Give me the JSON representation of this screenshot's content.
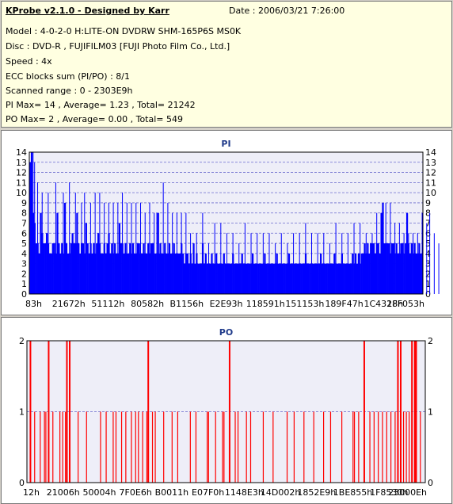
{
  "header": {
    "title": "KProbe v2.1.0 - Designed by Karr",
    "date": "Date : 2006/03/21 7:26:00",
    "lines": [
      "Model : 4-0-2-0 H:LITE-ON DVDRW SHM-165P6S MS0K",
      "Disc : DVD-R , FUJIFILM03 [FUJI Photo Film Co., Ltd.]",
      "Speed : 4x",
      "ECC blocks sum (PI/PO) : 8/1",
      "Scanned range : 0 - 2303E9h",
      "PI Max= 14 , Average= 1.23 , Total= 21242",
      "PO Max= 2 , Average= 0.00 , Total= 549"
    ]
  },
  "colors": {
    "pi_fill": "#0000ff",
    "po_bar": "#ff0000",
    "grid": "#6a6acd",
    "plot_bg": "#eeeef8"
  },
  "chart_data": [
    {
      "type": "bar",
      "title": "PI",
      "ylim": [
        0,
        14
      ],
      "yticks": [
        "0",
        "1",
        "2",
        "3",
        "4",
        "5",
        "6",
        "7",
        "8",
        "9",
        "10",
        "11",
        "12",
        "13",
        "14"
      ],
      "xticks": [
        "83h",
        "21672h",
        "51112h",
        "80582h",
        "B1156h",
        "E2E93h",
        "118591h",
        "151153h",
        "189F47h",
        "1C4328h",
        "1FF053h"
      ],
      "series": [
        {
          "values": [
            13,
            14,
            8,
            7,
            5,
            5,
            4,
            8,
            6,
            5,
            5,
            6,
            5,
            4,
            4,
            5,
            5,
            4,
            8,
            5,
            4,
            5,
            4,
            9,
            5,
            4,
            4,
            5,
            6,
            5,
            5,
            8,
            5,
            4,
            5,
            5,
            4,
            7,
            5,
            4,
            5,
            4,
            5,
            4,
            5,
            6,
            5,
            4,
            4,
            5,
            4,
            5,
            6,
            4,
            5,
            4,
            5,
            4,
            4,
            7,
            5,
            5,
            4,
            5,
            4,
            4,
            5,
            4,
            5,
            4,
            4,
            5,
            5,
            4,
            4,
            5,
            4,
            4,
            5,
            4,
            5,
            5,
            4,
            4,
            8,
            4,
            5,
            4,
            4,
            5,
            4,
            4,
            5,
            4,
            4,
            5,
            4,
            4,
            4,
            4,
            5,
            4,
            3,
            4,
            4,
            3,
            4,
            3,
            5,
            3,
            4,
            3,
            3,
            3,
            5,
            3,
            4,
            3,
            3,
            3,
            4,
            3,
            3,
            4,
            3,
            3,
            3,
            3,
            4,
            3,
            3,
            3,
            3,
            3,
            4,
            3,
            3,
            3,
            3,
            3,
            4,
            3,
            3,
            3,
            3,
            3,
            3,
            4,
            3,
            3,
            3,
            3,
            3,
            3,
            3,
            4,
            3,
            3,
            3,
            3,
            3,
            3,
            3,
            4,
            3,
            3,
            3,
            3,
            3,
            3,
            3,
            4,
            3,
            3,
            3,
            3,
            3,
            3,
            3,
            3,
            3,
            3,
            4,
            3,
            3,
            3,
            3,
            3,
            3,
            3,
            3,
            3,
            4,
            3,
            3,
            3,
            3,
            3,
            3,
            3,
            3,
            4,
            3,
            3,
            3,
            3,
            4,
            3,
            3,
            3,
            3,
            3,
            3,
            4,
            3,
            4,
            3,
            4,
            3,
            4,
            4,
            5,
            4,
            5,
            4,
            5,
            5,
            5,
            4,
            5,
            5,
            4,
            8,
            9,
            5,
            5,
            5,
            5,
            4,
            5,
            5,
            4,
            5,
            4,
            4,
            5,
            5,
            4,
            5,
            8,
            5,
            4,
            5,
            4,
            5,
            4,
            4,
            5,
            4,
            4
          ],
          "peaks": [
            [
              0,
              13
            ],
            [
              2,
              14
            ],
            [
              3,
              13
            ],
            [
              5,
              11
            ],
            [
              8,
              10
            ],
            [
              12,
              10
            ],
            [
              17,
              11
            ],
            [
              22,
              10
            ],
            [
              26,
              11
            ],
            [
              30,
              10
            ],
            [
              34,
              9
            ],
            [
              36,
              10
            ],
            [
              40,
              9
            ],
            [
              43,
              10
            ],
            [
              46,
              10
            ],
            [
              49,
              9
            ],
            [
              52,
              9
            ],
            [
              55,
              9
            ],
            [
              58,
              9
            ],
            [
              61,
              10
            ],
            [
              64,
              9
            ],
            [
              67,
              9
            ],
            [
              70,
              9
            ],
            [
              73,
              9
            ],
            [
              76,
              8
            ],
            [
              79,
              9
            ],
            [
              82,
              8
            ],
            [
              85,
              8
            ],
            [
              88,
              11
            ],
            [
              91,
              9
            ],
            [
              94,
              8
            ],
            [
              97,
              8
            ],
            [
              100,
              8
            ],
            [
              103,
              8
            ],
            [
              106,
              6
            ],
            [
              110,
              6
            ],
            [
              114,
              8
            ],
            [
              118,
              5
            ],
            [
              122,
              7
            ],
            [
              126,
              7
            ],
            [
              130,
              6
            ],
            [
              134,
              6
            ],
            [
              138,
              5
            ],
            [
              142,
              7
            ],
            [
              146,
              6
            ],
            [
              150,
              6
            ],
            [
              154,
              6
            ],
            [
              158,
              6
            ],
            [
              162,
              5
            ],
            [
              166,
              6
            ],
            [
              170,
              5
            ],
            [
              174,
              6
            ],
            [
              178,
              6
            ],
            [
              182,
              7
            ],
            [
              186,
              6
            ],
            [
              190,
              6
            ],
            [
              194,
              6
            ],
            [
              198,
              5
            ],
            [
              202,
              7
            ],
            [
              206,
              6
            ],
            [
              210,
              6
            ],
            [
              214,
              7
            ],
            [
              218,
              7
            ],
            [
              222,
              6
            ],
            [
              226,
              6
            ],
            [
              229,
              8
            ],
            [
              232,
              8
            ],
            [
              235,
              9
            ],
            [
              238,
              9
            ],
            [
              241,
              7
            ],
            [
              244,
              7
            ],
            [
              247,
              6
            ],
            [
              250,
              6
            ],
            [
              253,
              6
            ],
            [
              256,
              6
            ],
            [
              259,
              8
            ],
            [
              262,
              7
            ],
            [
              264,
              8
            ],
            [
              267,
              6
            ],
            [
              270,
              5
            ]
          ]
        }
      ]
    },
    {
      "type": "bar",
      "title": "PO",
      "ylim": [
        0,
        2
      ],
      "yticks": [
        "0",
        "1",
        "2"
      ],
      "xticks": [
        "12h",
        "21006h",
        "50004h",
        "7F0E6h",
        "B0011h",
        "E07F0h",
        "1148E3h",
        "14D002h",
        "1852E9h",
        "1BE855h",
        "1F8530h",
        "23000Eh"
      ],
      "series": [
        {
          "name": "PO",
          "bars": [
            [
              2,
              2
            ],
            [
              5,
              1
            ],
            [
              9,
              1
            ],
            [
              12,
              1
            ],
            [
              13,
              1
            ],
            [
              15,
              2
            ],
            [
              18,
              1
            ],
            [
              23,
              1
            ],
            [
              25,
              1
            ],
            [
              27,
              1
            ],
            [
              28,
              2
            ],
            [
              30,
              2
            ],
            [
              36,
              1
            ],
            [
              42,
              1
            ],
            [
              52,
              1
            ],
            [
              56,
              1
            ],
            [
              61,
              1
            ],
            [
              63,
              1
            ],
            [
              67,
              1
            ],
            [
              70,
              1
            ],
            [
              74,
              1
            ],
            [
              77,
              1
            ],
            [
              79,
              1
            ],
            [
              82,
              1
            ],
            [
              85,
              1
            ],
            [
              86,
              2
            ],
            [
              89,
              1
            ],
            [
              91,
              1
            ],
            [
              97,
              1
            ],
            [
              103,
              1
            ],
            [
              107,
              1
            ],
            [
              116,
              1
            ],
            [
              120,
              1
            ],
            [
              128,
              1
            ],
            [
              129,
              1
            ],
            [
              134,
              1
            ],
            [
              139,
              1
            ],
            [
              140,
              1
            ],
            [
              144,
              2
            ],
            [
              148,
              1
            ],
            [
              150,
              1
            ],
            [
              156,
              1
            ],
            [
              159,
              1
            ],
            [
              168,
              1
            ],
            [
              175,
              1
            ],
            [
              185,
              1
            ],
            [
              190,
              1
            ],
            [
              197,
              1
            ],
            [
              204,
              1
            ],
            [
              211,
              1
            ],
            [
              216,
              1
            ],
            [
              224,
              1
            ],
            [
              232,
              1
            ],
            [
              233,
              1
            ],
            [
              236,
              1
            ],
            [
              240,
              2
            ],
            [
              244,
              1
            ],
            [
              247,
              1
            ],
            [
              250,
              1
            ],
            [
              253,
              1
            ],
            [
              256,
              1
            ],
            [
              259,
              1
            ],
            [
              262,
              1
            ],
            [
              264,
              2
            ],
            [
              266,
              2
            ],
            [
              268,
              1
            ],
            [
              270,
              1
            ],
            [
              272,
              1
            ],
            [
              274,
              2
            ],
            [
              276,
              2
            ],
            [
              277,
              2
            ],
            [
              280,
              1
            ]
          ]
        }
      ]
    }
  ]
}
